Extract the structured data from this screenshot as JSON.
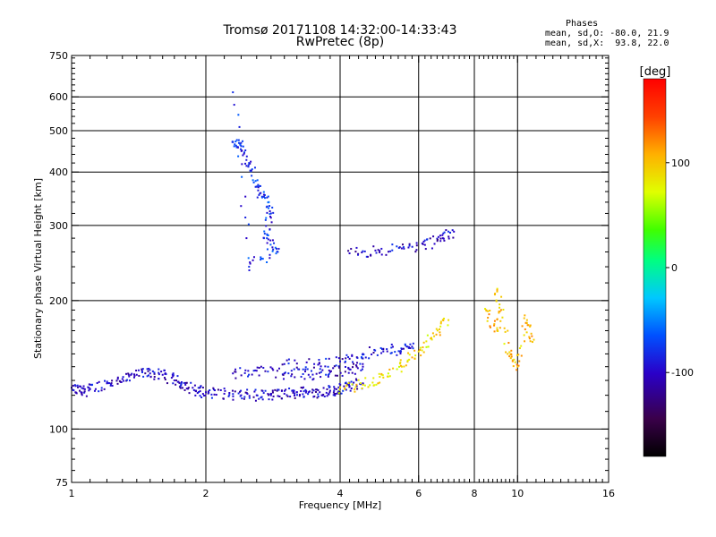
{
  "header": {
    "title_line1": "Tromsø 20171108 14:32:00-14:33:43",
    "title_line2": "RwPretec (8p)",
    "phases_title": "Phases",
    "phases_o": "mean, sd,O: -80.0, 21.9",
    "phases_x": "mean, sd,X:  93.8, 22.0"
  },
  "chart_data": {
    "type": "scatter",
    "xlabel": "Frequency [MHz]",
    "ylabel": "Stationary phase Virtual Height [km]",
    "xscale": "log",
    "yscale": "log",
    "xlim": [
      1,
      16
    ],
    "ylim": [
      75,
      750
    ],
    "xticks_major": [
      1,
      2,
      4,
      6,
      8,
      10,
      16
    ],
    "xtick_labels": [
      "1",
      "2",
      "4",
      "6",
      "8",
      "10",
      "16"
    ],
    "yticks_major": [
      75,
      100,
      200,
      300,
      400,
      500,
      600,
      750
    ],
    "ytick_labels": [
      "75",
      "100",
      "200",
      "300",
      "400",
      "500",
      "600",
      "750"
    ],
    "grid": true,
    "colorbar": {
      "label": "[deg]",
      "range": [
        -180,
        180
      ],
      "ticks": [
        100,
        0,
        -100
      ],
      "tick_labels": [
        "100",
        "0",
        "-100"
      ],
      "colormap": "rainbow (black-purple-blue-cyan-green-yellow-orange-red)"
    },
    "series": [
      {
        "description": "lower ionospheric trace",
        "x_range": [
          1.0,
          4.6
        ],
        "y_range": [
          115,
          140
        ],
        "points": [
          [
            1.0,
            125
          ],
          [
            1.05,
            122
          ],
          [
            1.1,
            124
          ],
          [
            1.2,
            128
          ],
          [
            1.3,
            131
          ],
          [
            1.4,
            134
          ],
          [
            1.5,
            135
          ],
          [
            1.6,
            134
          ],
          [
            1.7,
            130
          ],
          [
            1.8,
            127
          ],
          [
            1.9,
            123
          ],
          [
            2.0,
            122
          ],
          [
            2.2,
            121
          ],
          [
            2.4,
            120
          ],
          [
            2.6,
            120
          ],
          [
            2.8,
            120
          ],
          [
            3.0,
            121
          ],
          [
            3.2,
            122
          ],
          [
            3.4,
            122
          ],
          [
            3.6,
            122
          ],
          [
            3.8,
            123
          ],
          [
            4.0,
            124
          ],
          [
            4.2,
            126
          ],
          [
            4.5,
            128
          ]
        ],
        "phase": -100
      },
      {
        "description": "second hop trace",
        "x_range": [
          2.3,
          4.5
        ],
        "y_range": [
          125,
          140
        ],
        "points": [
          [
            2.3,
            135
          ],
          [
            2.6,
            137
          ],
          [
            3.0,
            135
          ],
          [
            3.4,
            134
          ],
          [
            3.8,
            136
          ],
          [
            4.2,
            138
          ],
          [
            4.5,
            140
          ]
        ],
        "phase": -100
      },
      {
        "description": "mid-frequency band trace",
        "x_range": [
          3.0,
          5.8
        ],
        "y_range": [
          125,
          155
        ],
        "points": [
          [
            3.0,
            142
          ],
          [
            3.5,
            142
          ],
          [
            4.0,
            144
          ],
          [
            4.5,
            150
          ],
          [
            5.0,
            152
          ],
          [
            5.5,
            154
          ],
          [
            5.8,
            156
          ]
        ],
        "phase": -95
      },
      {
        "description": "X-mode trace",
        "x_range": [
          4.0,
          7.0
        ],
        "y_range": [
          122,
          200
        ],
        "points": [
          [
            4.0,
            125
          ],
          [
            4.5,
            127
          ],
          [
            5.0,
            132
          ],
          [
            5.5,
            140
          ],
          [
            6.0,
            152
          ],
          [
            6.5,
            165
          ],
          [
            7.0,
            180
          ]
        ],
        "phase": 90
      },
      {
        "description": "upper trace near 260-290 km",
        "x_range": [
          4.2,
          7.2
        ],
        "y_range": [
          255,
          290
        ],
        "points": [
          [
            4.2,
            258
          ],
          [
            4.8,
            262
          ],
          [
            5.5,
            265
          ],
          [
            6.2,
            270
          ],
          [
            6.8,
            280
          ],
          [
            7.2,
            290
          ]
        ],
        "phase": -100
      },
      {
        "description": "F-region scatter near 2.3-2.9 MHz",
        "x_range": [
          2.2,
          3.0
        ],
        "y_range": [
          230,
          620
        ],
        "points": [
          [
            2.3,
            470
          ],
          [
            2.4,
            460
          ],
          [
            2.5,
            420
          ],
          [
            2.6,
            370
          ],
          [
            2.7,
            350
          ],
          [
            2.8,
            320
          ],
          [
            2.7,
            280
          ],
          [
            2.9,
            260
          ],
          [
            2.5,
            240
          ],
          [
            2.3,
            615
          ]
        ],
        "phase": -80
      },
      {
        "description": "scattered echoes above 8 MHz",
        "x_range": [
          8.0,
          11.0
        ],
        "y_range": [
          130,
          220
        ],
        "points": [
          [
            8.5,
            190
          ],
          [
            9.0,
            170
          ],
          [
            9.0,
            210
          ],
          [
            9.5,
            150
          ],
          [
            10.0,
            140
          ],
          [
            10.5,
            180
          ],
          [
            10.8,
            160
          ]
        ],
        "phase": 100
      }
    ]
  }
}
